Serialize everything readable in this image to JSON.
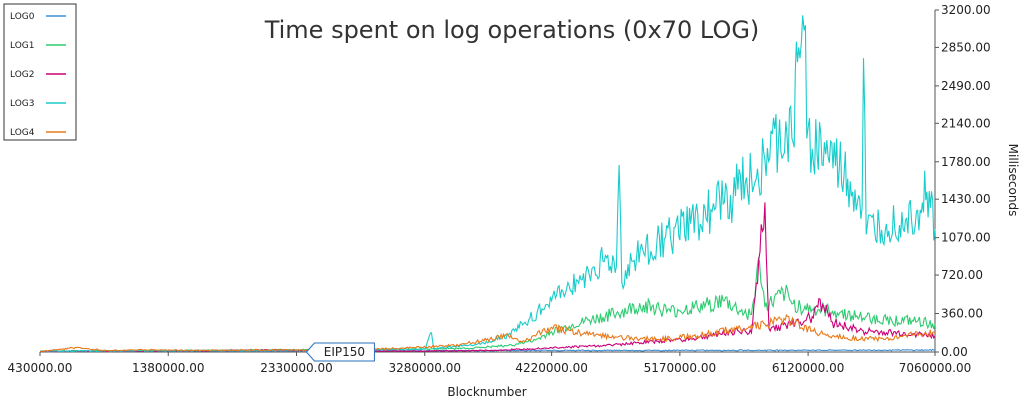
{
  "chart_data": {
    "type": "line",
    "title": "Time spent on log operations (0x70 LOG)",
    "xlabel": "Blocknumber",
    "ylabel": "Milliseconds",
    "xlim": [
      430000,
      7060000
    ],
    "ylim": [
      0,
      3200
    ],
    "x_ticks": [
      "430000.00",
      "1380000.00",
      "2330000.00",
      "3280000.00",
      "4220000.00",
      "5170000.00",
      "6120000.00",
      "7060000.00"
    ],
    "y_ticks": [
      "0.00",
      "360.00",
      "720.00",
      "1070.00",
      "1430.00",
      "1780.00",
      "2140.00",
      "2490.00",
      "2850.00",
      "3200.00"
    ],
    "y_axis_position": "right",
    "grid": false,
    "legend_position": "top-left",
    "annotation": {
      "label": "EIP150",
      "x": 2463000
    },
    "series": [
      {
        "name": "LOG0",
        "color": "#3d8fd6",
        "points": [
          [
            430000,
            5
          ],
          [
            1000000,
            8
          ],
          [
            2000000,
            10
          ],
          [
            3000000,
            12
          ],
          [
            4000000,
            14
          ],
          [
            5000000,
            15
          ],
          [
            6000000,
            17
          ],
          [
            7060000,
            18
          ]
        ]
      },
      {
        "name": "LOG1",
        "color": "#2ecc71",
        "points": [
          [
            430000,
            10
          ],
          [
            1000000,
            12
          ],
          [
            1500000,
            15
          ],
          [
            2000000,
            20
          ],
          [
            2463000,
            20
          ],
          [
            2800000,
            25
          ],
          [
            3280000,
            28
          ],
          [
            3600000,
            35
          ],
          [
            3900000,
            60
          ],
          [
            4100000,
            110
          ],
          [
            4220000,
            190
          ],
          [
            4350000,
            240
          ],
          [
            4500000,
            300
          ],
          [
            4700000,
            360
          ],
          [
            4900000,
            440
          ],
          [
            5100000,
            380
          ],
          [
            5300000,
            420
          ],
          [
            5500000,
            480
          ],
          [
            5620000,
            380
          ],
          [
            5700000,
            350
          ],
          [
            5760000,
            850
          ],
          [
            5800000,
            420
          ],
          [
            5950000,
            550
          ],
          [
            6000000,
            450
          ],
          [
            6150000,
            400
          ],
          [
            6300000,
            380
          ],
          [
            6500000,
            330
          ],
          [
            6700000,
            300
          ],
          [
            6900000,
            290
          ],
          [
            7060000,
            260
          ]
        ]
      },
      {
        "name": "LOG2",
        "color": "#cc0077",
        "points": [
          [
            430000,
            5
          ],
          [
            1500000,
            10
          ],
          [
            2200000,
            20
          ],
          [
            2600000,
            10
          ],
          [
            3280000,
            8
          ],
          [
            3800000,
            15
          ],
          [
            4220000,
            40
          ],
          [
            4600000,
            60
          ],
          [
            5000000,
            100
          ],
          [
            5300000,
            130
          ],
          [
            5600000,
            200
          ],
          [
            5700000,
            180
          ],
          [
            5800000,
            1400
          ],
          [
            5830000,
            220
          ],
          [
            6000000,
            260
          ],
          [
            6150000,
            330
          ],
          [
            6200000,
            500
          ],
          [
            6300000,
            280
          ],
          [
            6500000,
            200
          ],
          [
            6700000,
            180
          ],
          [
            6900000,
            170
          ],
          [
            7060000,
            150
          ]
        ]
      },
      {
        "name": "LOG3",
        "color": "#19cccc",
        "points": [
          [
            430000,
            8
          ],
          [
            1000000,
            10
          ],
          [
            2000000,
            15
          ],
          [
            2463000,
            20
          ],
          [
            3280000,
            25
          ],
          [
            3330000,
            180
          ],
          [
            3350000,
            30
          ],
          [
            3700000,
            80
          ],
          [
            3900000,
            160
          ],
          [
            4050000,
            300
          ],
          [
            4220000,
            480
          ],
          [
            4350000,
            620
          ],
          [
            4500000,
            720
          ],
          [
            4600000,
            850
          ],
          [
            4700000,
            800
          ],
          [
            4720000,
            1750
          ],
          [
            4740000,
            650
          ],
          [
            4850000,
            900
          ],
          [
            5000000,
            1030
          ],
          [
            5100000,
            1080
          ],
          [
            5250000,
            1200
          ],
          [
            5400000,
            1330
          ],
          [
            5500000,
            1400
          ],
          [
            5600000,
            1520
          ],
          [
            5700000,
            1650
          ],
          [
            5800000,
            1800
          ],
          [
            5900000,
            1950
          ],
          [
            6000000,
            2000
          ],
          [
            6050000,
            2850
          ],
          [
            6080000,
            3150
          ],
          [
            6120000,
            2100
          ],
          [
            6150000,
            1900
          ],
          [
            6250000,
            1850
          ],
          [
            6350000,
            1700
          ],
          [
            6450000,
            1500
          ],
          [
            6520000,
            1350
          ],
          [
            6530000,
            2750
          ],
          [
            6550000,
            1100
          ],
          [
            6700000,
            1200
          ],
          [
            6850000,
            1250
          ],
          [
            6950000,
            1330
          ],
          [
            7000000,
            1500
          ],
          [
            7060000,
            1150
          ]
        ]
      },
      {
        "name": "LOG4",
        "color": "#e87a1a",
        "points": [
          [
            430000,
            5
          ],
          [
            700000,
            40
          ],
          [
            900000,
            15
          ],
          [
            1200000,
            20
          ],
          [
            1600000,
            15
          ],
          [
            2000000,
            18
          ],
          [
            2463000,
            20
          ],
          [
            3000000,
            30
          ],
          [
            3500000,
            60
          ],
          [
            3900000,
            150
          ],
          [
            4000000,
            90
          ],
          [
            4220000,
            230
          ],
          [
            4400000,
            180
          ],
          [
            4700000,
            140
          ],
          [
            5000000,
            120
          ],
          [
            5300000,
            150
          ],
          [
            5600000,
            220
          ],
          [
            5800000,
            260
          ],
          [
            5950000,
            300
          ],
          [
            6150000,
            200
          ],
          [
            6300000,
            150
          ],
          [
            6500000,
            120
          ],
          [
            6700000,
            130
          ],
          [
            6900000,
            160
          ],
          [
            7060000,
            180
          ]
        ]
      }
    ]
  }
}
